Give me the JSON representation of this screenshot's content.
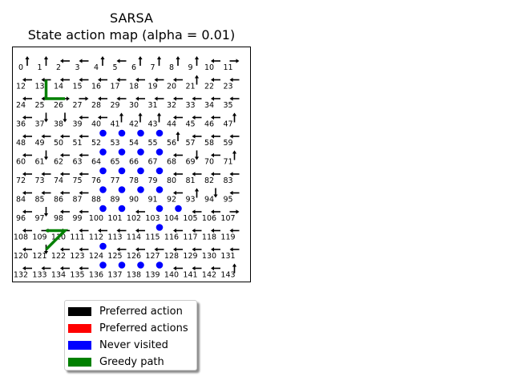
{
  "chart_data": {
    "type": "grid-policy-map",
    "title_line1": "SARSA",
    "title_line2": "State action map (alpha = 0.01)",
    "grid": {
      "rows": 12,
      "cols": 12
    },
    "state_labels": [
      "0",
      "1",
      "2",
      "3",
      "4",
      "5",
      "6",
      "7",
      "8",
      "9",
      "10",
      "11",
      "12",
      "13",
      "14",
      "15",
      "16",
      "17",
      "18",
      "19",
      "20",
      "21",
      "22",
      "23",
      "24",
      "25",
      "26",
      "27",
      "28",
      "29",
      "30",
      "31",
      "32",
      "33",
      "34",
      "35",
      "36",
      "37",
      "38",
      "39",
      "40",
      "41",
      "42",
      "43",
      "44",
      "45",
      "46",
      "47",
      "48",
      "49",
      "50",
      "51",
      "52",
      "53",
      "54",
      "55",
      "56",
      "57",
      "58",
      "59",
      "60",
      "61",
      "62",
      "63",
      "64",
      "65",
      "66",
      "67",
      "68",
      "69",
      "70",
      "71",
      "72",
      "73",
      "74",
      "75",
      "76",
      "77",
      "78",
      "79",
      "80",
      "81",
      "82",
      "83",
      "84",
      "85",
      "86",
      "87",
      "88",
      "89",
      "90",
      "91",
      "92",
      "93",
      "94",
      "95",
      "96",
      "97",
      "98",
      "99",
      "100",
      "101",
      "102",
      "103",
      "104",
      "105",
      "106",
      "107",
      "108",
      "109",
      "110",
      "111",
      "112",
      "113",
      "114",
      "115",
      "116",
      "117",
      "118",
      "119",
      "120",
      "121",
      "122",
      "123",
      "124",
      "125",
      "126",
      "127",
      "128",
      "129",
      "130",
      "131",
      "132",
      "133",
      "134",
      "135",
      "136",
      "137",
      "138",
      "139",
      "140",
      "141",
      "142",
      "143"
    ],
    "actions": [
      "up",
      "up",
      "left",
      "left",
      "up",
      "left",
      "up",
      "up",
      "up",
      "up",
      "left",
      "right",
      "left",
      "left",
      "left",
      "left",
      "left",
      "left",
      "left",
      "left",
      "left",
      "up",
      "left",
      "left",
      "left",
      "left",
      "right",
      "right",
      "left",
      "left",
      "left",
      "left",
      "left",
      "left",
      "left",
      "left",
      "left",
      "down",
      "down",
      "left",
      "left",
      "up",
      "up",
      "up",
      "left",
      "left",
      "left",
      "up",
      "left",
      "left",
      "left",
      "left",
      "never",
      "never",
      "never",
      "never",
      "up",
      "left",
      "left",
      "left",
      "left",
      "down",
      "left",
      "left",
      "never",
      "never",
      "never",
      "never",
      "left",
      "down",
      "left",
      "up",
      "left",
      "left",
      "left",
      "left",
      "never",
      "never",
      "never",
      "never",
      "left",
      "left",
      "left",
      "left",
      "left",
      "left",
      "left",
      "left",
      "never",
      "never",
      "never",
      "never",
      "left",
      "up",
      "down",
      "left",
      "left",
      "down",
      "left",
      "left",
      "never",
      "never",
      "left",
      "never",
      "never",
      "left",
      "left",
      "right",
      "left",
      "right",
      "left",
      "left",
      "left",
      "left",
      "left",
      "never",
      "left",
      "left",
      "left",
      "left",
      "left",
      "down",
      "left",
      "left",
      "never",
      "left",
      "left",
      "left",
      "left",
      "left",
      "left",
      "left",
      "left",
      "left",
      "left",
      "left",
      "never",
      "never",
      "never",
      "never",
      "left",
      "left",
      "left",
      "up"
    ],
    "greedy_path": [
      [
        [
          1,
          1
        ],
        [
          2,
          1
        ],
        [
          2,
          2
        ]
      ],
      [
        [
          9,
          1
        ],
        [
          9,
          2
        ],
        [
          10,
          1
        ]
      ]
    ],
    "legend": [
      {
        "label": "Preferred action",
        "color": "#000000"
      },
      {
        "label": "Preferred actions",
        "color": "#ff0000"
      },
      {
        "label": "Never visited",
        "color": "#0000ff"
      },
      {
        "label": "Greedy path",
        "color": "#008000"
      }
    ],
    "colors": {
      "arrow": "#000000",
      "never_visited": "#0000ff",
      "greedy_path": "#008000",
      "frame": "#000000"
    }
  }
}
